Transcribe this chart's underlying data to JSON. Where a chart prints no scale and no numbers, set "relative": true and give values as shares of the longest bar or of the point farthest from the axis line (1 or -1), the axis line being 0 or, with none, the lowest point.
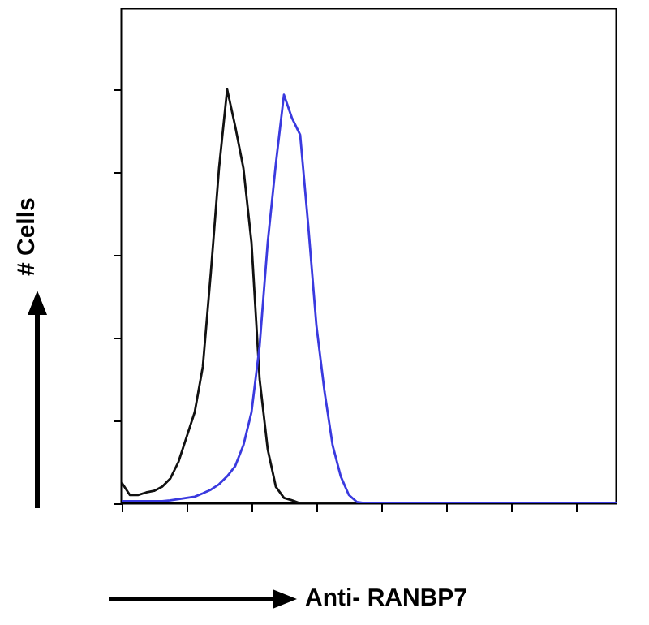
{
  "chart_data": {
    "type": "line",
    "relative": true,
    "xlabel": "Anti- RANBP7",
    "ylabel": "# Cells",
    "categories": [
      null,
      null,
      null,
      null,
      null,
      null,
      null,
      null,
      null,
      null,
      null,
      null,
      null,
      null,
      null,
      null,
      null,
      null,
      null,
      null,
      null,
      null,
      null,
      null,
      null,
      null,
      null,
      null,
      null,
      null,
      null,
      null,
      null,
      null,
      null,
      null,
      null,
      null,
      null,
      null,
      null,
      null,
      null,
      null,
      null,
      null,
      null,
      null,
      null,
      null,
      null,
      null,
      null,
      null,
      null,
      null,
      null,
      null,
      null,
      null,
      null,
      null
    ],
    "series": [
      {
        "color": "#111111",
        "values": [
          0.05,
          0.02,
          0.02,
          0.026,
          0.03,
          0.04,
          0.06,
          0.1,
          0.16,
          0.22,
          0.33,
          0.56,
          0.81,
          1.0,
          0.91,
          0.81,
          0.63,
          0.3,
          0.13,
          0.04,
          0.013,
          0.007,
          0,
          0,
          0,
          0,
          0,
          0,
          0,
          0,
          0,
          0,
          0,
          0,
          0,
          0,
          0,
          0,
          0,
          0,
          0,
          0,
          0,
          0,
          0,
          0,
          0,
          0,
          0,
          0,
          0,
          0,
          0,
          0,
          0,
          0,
          0,
          0,
          0,
          0,
          0,
          0
        ]
      },
      {
        "color": "#3a3adf",
        "values": [
          0.005,
          0.005,
          0.005,
          0.005,
          0.005,
          0.005,
          0.007,
          0.01,
          0.013,
          0.016,
          0.024,
          0.033,
          0.046,
          0.065,
          0.09,
          0.14,
          0.22,
          0.38,
          0.63,
          0.82,
          0.987,
          0.93,
          0.89,
          0.67,
          0.43,
          0.27,
          0.14,
          0.065,
          0.02,
          0.003,
          0,
          0,
          0,
          0,
          0,
          0,
          0,
          0,
          0,
          0,
          0,
          0,
          0,
          0,
          0,
          0,
          0,
          0,
          0,
          0,
          0,
          0,
          0,
          0,
          0,
          0,
          0,
          0,
          0,
          0,
          0,
          0
        ]
      }
    ]
  }
}
